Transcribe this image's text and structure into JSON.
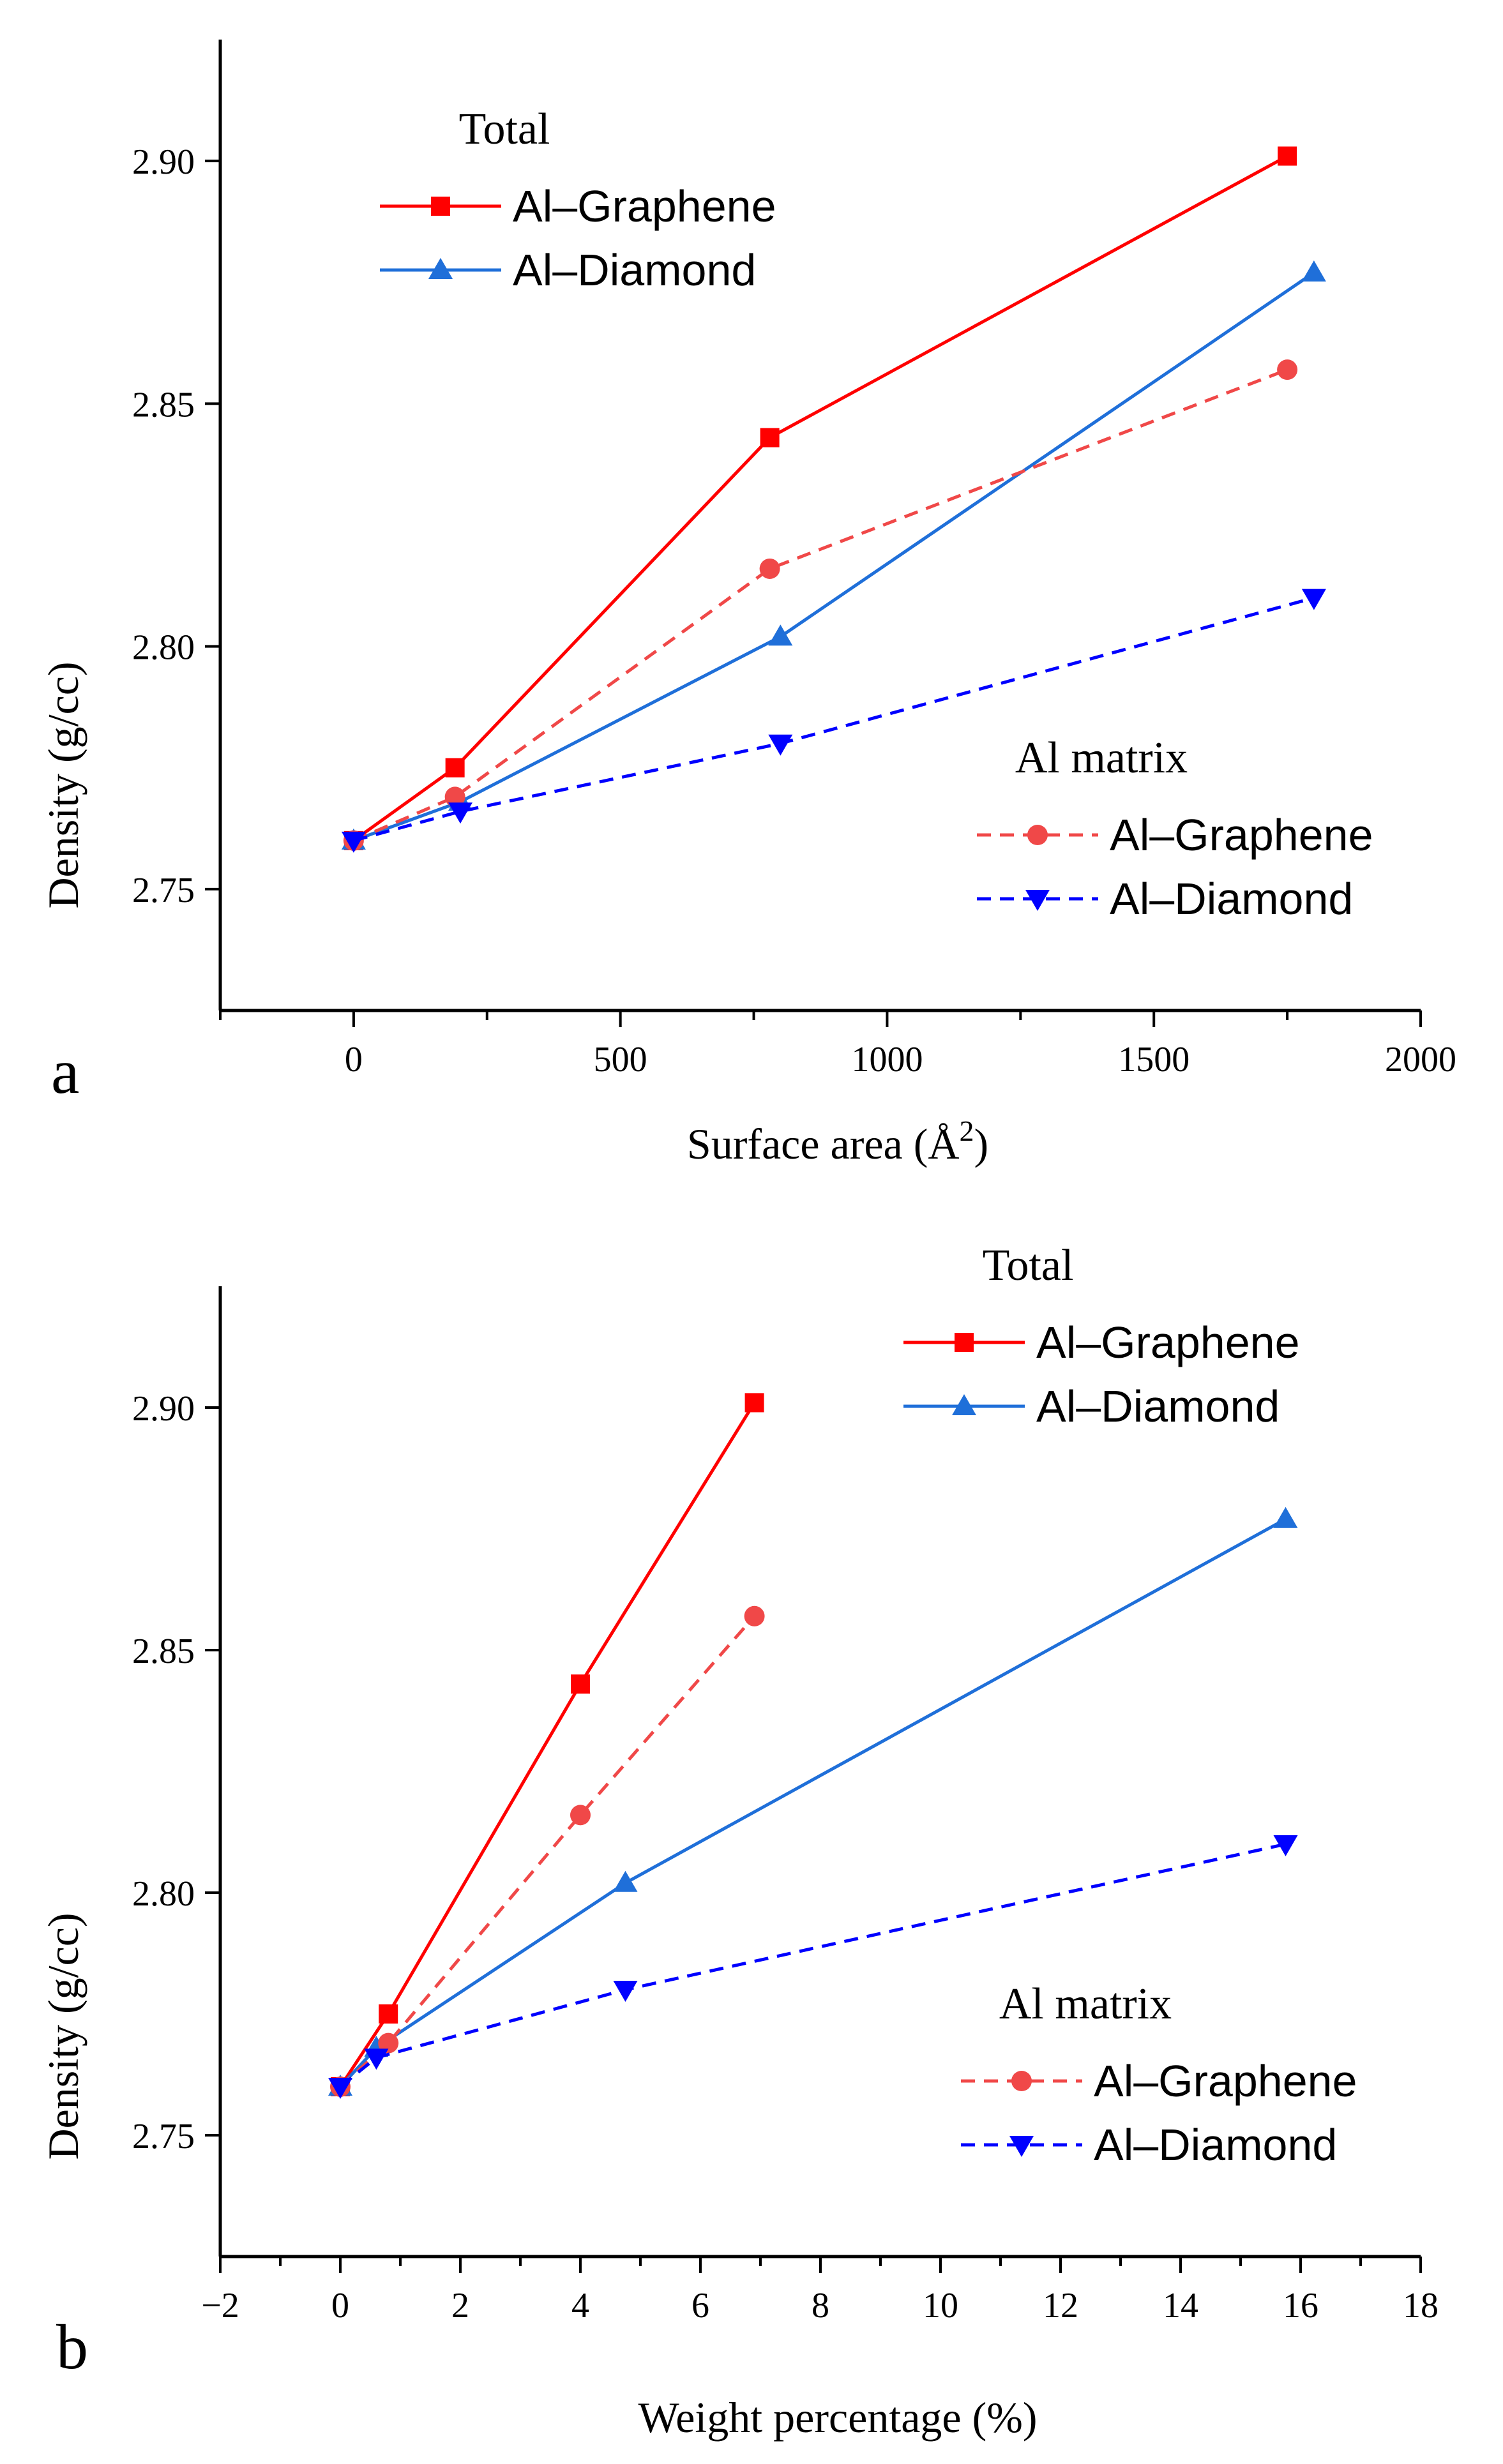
{
  "chart_data": [
    {
      "panel": "a",
      "type": "line",
      "title": "",
      "xlabel": "Surface area (Å",
      "xlabel_sup": "2",
      "xlabel_end": ")",
      "ylabel": "Density (g/cc)",
      "xlim": [
        -250,
        2000
      ],
      "ylim": [
        2.725,
        2.925
      ],
      "xticks": [
        0,
        500,
        1000,
        1500,
        2000
      ],
      "xtick_labels": [
        "0",
        "500",
        "1000",
        "1500",
        "2000"
      ],
      "xminor": [
        -250,
        250,
        750,
        1250,
        1750
      ],
      "yticks": [
        2.75,
        2.8,
        2.85,
        2.9
      ],
      "ytick_labels": [
        "2.75",
        "2.80",
        "2.85",
        "2.90"
      ],
      "grid": false,
      "legend_groups": [
        {
          "title": "Total",
          "position": "top-left",
          "series": [
            "Al–Graphene",
            "Al–Diamond"
          ]
        },
        {
          "title": "Al matrix",
          "position": "bottom-right",
          "series": [
            "Al–Graphene",
            "Al–Diamond"
          ]
        }
      ],
      "series": [
        {
          "name": "Al–Graphene",
          "group": "Total",
          "color": "#ff0000",
          "style": "solid",
          "marker": "square",
          "x": [
            0,
            190,
            780,
            1750
          ],
          "y": [
            2.76,
            2.775,
            2.843,
            2.901
          ]
        },
        {
          "name": "Al–Diamond",
          "group": "Total",
          "color": "#1f6fd9",
          "style": "solid",
          "marker": "triangle-up",
          "x": [
            0,
            200,
            800,
            1800
          ],
          "y": [
            2.76,
            2.768,
            2.802,
            2.877
          ]
        },
        {
          "name": "Al–Graphene",
          "group": "Al matrix",
          "color": "#f04848",
          "style": "dashed",
          "marker": "circle",
          "x": [
            0,
            190,
            780,
            1750
          ],
          "y": [
            2.76,
            2.769,
            2.816,
            2.857
          ]
        },
        {
          "name": "Al–Diamond",
          "group": "Al matrix",
          "color": "#0000ff",
          "style": "dashed",
          "marker": "triangle-down",
          "x": [
            0,
            200,
            800,
            1800
          ],
          "y": [
            2.76,
            2.766,
            2.78,
            2.81
          ]
        }
      ]
    },
    {
      "panel": "b",
      "type": "line",
      "title": "",
      "xlabel": "Weight percentage (%)",
      "ylabel": "Density (g/cc)",
      "xlim": [
        -2,
        18
      ],
      "ylim": [
        2.725,
        2.925
      ],
      "xticks": [
        -2,
        0,
        2,
        4,
        6,
        8,
        10,
        12,
        14,
        16,
        18
      ],
      "xtick_labels": [
        "−2",
        "0",
        "2",
        "4",
        "6",
        "8",
        "10",
        "12",
        "14",
        "16",
        "18"
      ],
      "xminor": [
        -1,
        1,
        3,
        5,
        7,
        9,
        11,
        13,
        15,
        17
      ],
      "yticks": [
        2.75,
        2.8,
        2.85,
        2.9
      ],
      "ytick_labels": [
        "2.75",
        "2.80",
        "2.85",
        "2.90"
      ],
      "grid": false,
      "legend_groups": [
        {
          "title": "Total",
          "position": "top-right",
          "series": [
            "Al–Graphene",
            "Al–Diamond"
          ]
        },
        {
          "title": "Al matrix",
          "position": "bottom-right",
          "series": [
            "Al–Graphene",
            "Al–Diamond"
          ]
        }
      ],
      "series": [
        {
          "name": "Al–Graphene",
          "group": "Total",
          "color": "#ff0000",
          "style": "solid",
          "marker": "square",
          "x": [
            0,
            0.8,
            4.0,
            6.9
          ],
          "y": [
            2.76,
            2.775,
            2.843,
            2.901
          ]
        },
        {
          "name": "Al–Diamond",
          "group": "Total",
          "color": "#1f6fd9",
          "style": "solid",
          "marker": "triangle-up",
          "x": [
            0,
            0.6,
            4.75,
            15.75
          ],
          "y": [
            2.76,
            2.768,
            2.802,
            2.877
          ]
        },
        {
          "name": "Al–Graphene",
          "group": "Al matrix",
          "color": "#f04848",
          "style": "dashed",
          "marker": "circle",
          "x": [
            0,
            0.8,
            4.0,
            6.9
          ],
          "y": [
            2.76,
            2.769,
            2.816,
            2.857
          ]
        },
        {
          "name": "Al–Diamond",
          "group": "Al matrix",
          "color": "#0000ff",
          "style": "dashed",
          "marker": "triangle-down",
          "x": [
            0,
            0.6,
            4.75,
            15.75
          ],
          "y": [
            2.76,
            2.766,
            2.78,
            2.81
          ]
        }
      ]
    }
  ]
}
